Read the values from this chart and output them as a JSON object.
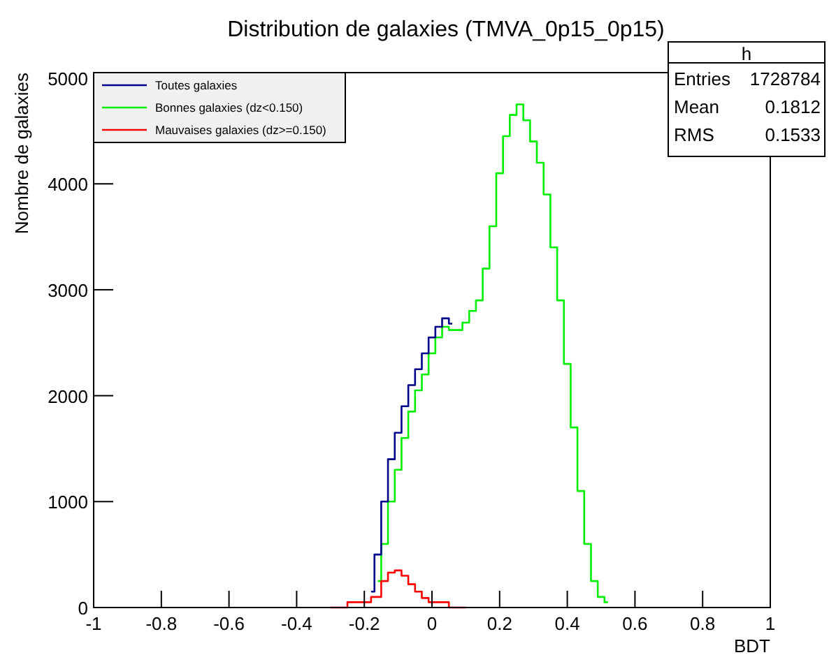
{
  "chart_data": {
    "type": "step",
    "title": "Distribution de galaxies (TMVA_0p15_0p15)",
    "xlabel": "BDT",
    "ylabel": "Nombre de galaxies",
    "xlim": [
      -1,
      1
    ],
    "xticks": [
      -1,
      -0.8,
      -0.6,
      -0.4,
      -0.2,
      0,
      0.2,
      0.4,
      0.6,
      0.8,
      1
    ],
    "ylim": [
      0,
      5050
    ],
    "yticks": [
      0,
      1000,
      2000,
      3000,
      4000,
      5000
    ],
    "legend": "top left",
    "grid": false,
    "annotations": [
      "h",
      "Entries",
      "1728784",
      "Mean",
      "0.1812",
      "RMS",
      "0.1533"
    ],
    "series": [
      {
        "name": "Toutes galaxies",
        "color": "#00008b",
        "x": [
          -0.18,
          -0.16,
          -0.14,
          -0.12,
          -0.1,
          -0.08,
          -0.06,
          -0.04,
          -0.02,
          0,
          0.02,
          0.04,
          0.06
        ],
        "values": [
          150,
          500,
          1000,
          1400,
          1650,
          1900,
          2100,
          2250,
          2400,
          2550,
          2650,
          2730,
          2680
        ]
      },
      {
        "name": "Bonnes galaxies (dz<0.150)",
        "color": "#00ee00",
        "x": [
          -0.16,
          -0.14,
          -0.12,
          -0.1,
          -0.08,
          -0.06,
          -0.04,
          -0.02,
          0,
          0.02,
          0.04,
          0.06,
          0.08,
          0.1,
          0.12,
          0.14,
          0.16,
          0.18,
          0.2,
          0.22,
          0.24,
          0.26,
          0.28,
          0.3,
          0.32,
          0.34,
          0.36,
          0.38,
          0.4,
          0.42,
          0.44,
          0.46,
          0.48,
          0.5,
          0.52
        ],
        "values": [
          250,
          600,
          1000,
          1300,
          1600,
          1850,
          2050,
          2200,
          2400,
          2550,
          2650,
          2620,
          2620,
          2690,
          2800,
          2900,
          3200,
          3600,
          4100,
          4450,
          4650,
          4750,
          4600,
          4400,
          4200,
          3900,
          3400,
          2900,
          2300,
          1700,
          1100,
          600,
          250,
          100,
          50
        ]
      },
      {
        "name": "Mauvaises galaxies (dz>=0.150)",
        "color": "#ff0000",
        "x": [
          -0.3,
          -0.2,
          -0.16,
          -0.14,
          -0.12,
          -0.1,
          -0.08,
          -0.06,
          -0.04,
          -0.02,
          0,
          0.1
        ],
        "values": [
          0,
          50,
          100,
          250,
          330,
          350,
          300,
          220,
          150,
          90,
          50,
          0
        ]
      }
    ]
  }
}
